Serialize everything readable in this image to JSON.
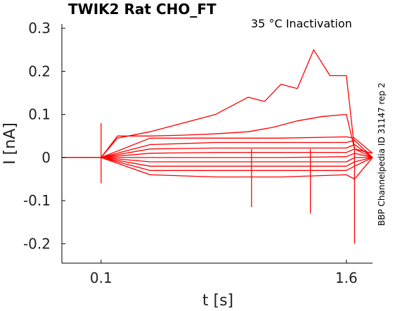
{
  "chart_data": {
    "type": "line",
    "title": "TWIK2  Rat  CHO_FT",
    "annotation": "35 °C  Inactivation",
    "side_label": "BBP Channelpedia ID 31147 rep 2",
    "xlabel": "t [s]",
    "ylabel": "I [nA]",
    "xlim": [
      -0.14,
      1.76
    ],
    "ylim": [
      -0.245,
      0.31
    ],
    "xticks": [
      0.1,
      1.6
    ],
    "xtick_labels": [
      "0.1",
      "1.6"
    ],
    "yticks": [
      -0.2,
      -0.1,
      0,
      0.1,
      0.2,
      0.3
    ],
    "ytick_labels": [
      "-0.2",
      "-0.1",
      "0",
      "0.1",
      "0.2",
      "0.3"
    ],
    "grid": false,
    "line_color": "#ff0000",
    "series": [
      {
        "x": [
          -0.14,
          0.1,
          0.2,
          0.4,
          0.55,
          0.8,
          1.0,
          1.1,
          1.2,
          1.3,
          1.4,
          1.5,
          1.6,
          1.65,
          1.76
        ],
        "values": [
          0.0,
          0.0,
          0.045,
          0.06,
          0.075,
          0.1,
          0.14,
          0.13,
          0.17,
          0.16,
          0.25,
          0.19,
          0.19,
          0.02,
          0.01
        ]
      },
      {
        "x": [
          -0.14,
          0.1,
          0.2,
          0.4,
          0.6,
          0.8,
          1.0,
          1.15,
          1.3,
          1.45,
          1.6,
          1.65,
          1.76
        ],
        "values": [
          0.0,
          0.0,
          0.05,
          0.05,
          0.052,
          0.055,
          0.06,
          0.07,
          0.085,
          0.095,
          0.1,
          0.02,
          0.01
        ]
      },
      {
        "x": [
          -0.14,
          0.1,
          0.4,
          0.8,
          1.2,
          1.6,
          1.65,
          1.76
        ],
        "values": [
          0.0,
          0.0,
          0.045,
          0.045,
          0.045,
          0.048,
          0.045,
          0.01
        ]
      },
      {
        "x": [
          -0.14,
          0.1,
          0.4,
          0.8,
          1.2,
          1.6,
          1.65,
          1.76
        ],
        "values": [
          0.0,
          0.0,
          0.03,
          0.035,
          0.035,
          0.035,
          0.04,
          0.0
        ]
      },
      {
        "x": [
          -0.14,
          0.1,
          0.4,
          0.8,
          1.2,
          1.6,
          1.65,
          1.76
        ],
        "values": [
          0.0,
          0.0,
          0.02,
          0.022,
          0.022,
          0.022,
          0.03,
          0.0
        ]
      },
      {
        "x": [
          -0.14,
          0.1,
          0.4,
          0.8,
          1.2,
          1.6,
          1.65,
          1.76
        ],
        "values": [
          0.0,
          0.0,
          0.01,
          0.012,
          0.012,
          0.012,
          0.02,
          0.0
        ]
      },
      {
        "x": [
          -0.14,
          0.1,
          0.4,
          0.8,
          1.2,
          1.6,
          1.65,
          1.76
        ],
        "values": [
          0.0,
          0.0,
          0.0,
          0.0,
          0.0,
          0.002,
          0.01,
          0.0
        ]
      },
      {
        "x": [
          -0.14,
          0.1,
          0.4,
          0.8,
          1.2,
          1.6,
          1.65,
          1.76
        ],
        "values": [
          0.0,
          0.0,
          -0.01,
          -0.01,
          -0.01,
          -0.01,
          0.0,
          0.0
        ]
      },
      {
        "x": [
          -0.14,
          0.1,
          0.4,
          0.8,
          1.2,
          1.6,
          1.65,
          1.76
        ],
        "values": [
          0.0,
          0.0,
          -0.02,
          -0.02,
          -0.02,
          -0.02,
          -0.01,
          0.0
        ]
      },
      {
        "x": [
          -0.14,
          0.1,
          0.4,
          0.8,
          1.2,
          1.6,
          1.65,
          1.76
        ],
        "values": [
          0.0,
          0.0,
          -0.03,
          -0.03,
          -0.03,
          -0.03,
          -0.02,
          0.0
        ]
      },
      {
        "x": [
          -0.14,
          0.1,
          0.4,
          0.8,
          1.2,
          1.6,
          1.65,
          1.76
        ],
        "values": [
          0.0,
          0.0,
          -0.04,
          -0.045,
          -0.045,
          -0.04,
          -0.05,
          0.0
        ]
      }
    ],
    "spikes": [
      {
        "x": 0.1,
        "values": [
          0.08,
          -0.06
        ]
      },
      {
        "x": 1.02,
        "values": [
          0.02,
          -0.115
        ]
      },
      {
        "x": 1.38,
        "values": [
          0.02,
          -0.13
        ]
      },
      {
        "x": 1.65,
        "values": [
          0.02,
          -0.2
        ]
      }
    ]
  }
}
